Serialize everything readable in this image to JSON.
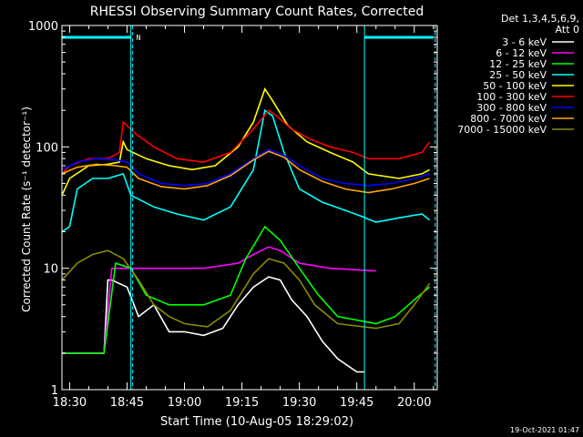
{
  "chart_data": {
    "type": "line",
    "title": "RHESSI Observing Summary Count Rates, Corrected",
    "xlabel": "Start Time (10-Aug-05 18:29:02)",
    "ylabel": "Corrected Count Rate (s⁻¹ detector⁻¹)",
    "xlim": [
      "18:28",
      "20:06"
    ],
    "ylim": [
      1,
      1000
    ],
    "y_scale": "log",
    "x_ticks": [
      "18:30",
      "18:45",
      "19:00",
      "19:15",
      "19:30",
      "19:45",
      "20:00"
    ],
    "y_ticks": [
      "1",
      "10",
      "100",
      "1000"
    ],
    "detectors_label": "Det 1,3,4,5,6,9,",
    "attenuator_label": "Att 0",
    "flag_label": "N",
    "timestamp": "19-Oct-2021 01:47",
    "legend_position": "top-right, outside plot",
    "series": [
      {
        "name": "3 - 6 keV",
        "color": "#ffffff",
        "points": [
          [
            "18:28",
            2
          ],
          [
            "18:39",
            2
          ],
          [
            "18:40",
            8
          ],
          [
            "18:41",
            8
          ],
          [
            "18:45",
            7
          ],
          [
            "18:48",
            4
          ],
          [
            "18:52",
            5
          ],
          [
            "18:56",
            3
          ],
          [
            "19:00",
            3
          ],
          [
            "19:05",
            2.8
          ],
          [
            "19:10",
            3.2
          ],
          [
            "19:14",
            5
          ],
          [
            "19:18",
            7
          ],
          [
            "19:22",
            8.5
          ],
          [
            "19:25",
            8
          ],
          [
            "19:28",
            5.5
          ],
          [
            "19:32",
            4
          ],
          [
            "19:36",
            2.5
          ],
          [
            "19:40",
            1.8
          ],
          [
            "19:45",
            1.4
          ],
          [
            "19:47",
            1.4
          ]
        ]
      },
      {
        "name": "6 - 12 keV",
        "color": "#ff00ff",
        "points": [
          [
            "18:28",
            2
          ],
          [
            "18:39",
            2
          ],
          [
            "18:41",
            10
          ],
          [
            "18:46",
            10
          ],
          [
            "19:05",
            10
          ],
          [
            "19:14",
            11
          ],
          [
            "19:18",
            13
          ],
          [
            "19:22",
            15
          ],
          [
            "19:25",
            14
          ],
          [
            "19:30",
            11
          ],
          [
            "19:38",
            10
          ],
          [
            "19:50",
            9.5
          ]
        ]
      },
      {
        "name": "12 - 25 keV",
        "color": "#00ff00",
        "points": [
          [
            "18:28",
            2
          ],
          [
            "18:39",
            2
          ],
          [
            "18:40",
            3.5
          ],
          [
            "18:42",
            11
          ],
          [
            "18:46",
            10
          ],
          [
            "18:50",
            6
          ],
          [
            "18:56",
            5
          ],
          [
            "19:05",
            5
          ],
          [
            "19:12",
            6
          ],
          [
            "19:16",
            12
          ],
          [
            "19:21",
            22
          ],
          [
            "19:25",
            17
          ],
          [
            "19:30",
            10
          ],
          [
            "19:35",
            6
          ],
          [
            "19:40",
            4
          ],
          [
            "19:50",
            3.5
          ],
          [
            "19:55",
            4
          ],
          [
            "20:00",
            5.5
          ],
          [
            "20:04",
            7
          ]
        ]
      },
      {
        "name": "25 - 50 keV",
        "color": "#00ffff",
        "points": [
          [
            "18:28",
            20
          ],
          [
            "18:30",
            22
          ],
          [
            "18:32",
            45
          ],
          [
            "18:36",
            55
          ],
          [
            "18:40",
            55
          ],
          [
            "18:44",
            60
          ],
          [
            "18:46",
            40
          ],
          [
            "18:52",
            32
          ],
          [
            "18:58",
            28
          ],
          [
            "19:05",
            25
          ],
          [
            "19:12",
            32
          ],
          [
            "19:18",
            65
          ],
          [
            "19:21",
            200
          ],
          [
            "19:23",
            180
          ],
          [
            "19:26",
            90
          ],
          [
            "19:30",
            45
          ],
          [
            "19:36",
            35
          ],
          [
            "19:42",
            30
          ],
          [
            "19:46",
            27
          ],
          [
            "19:50",
            24
          ],
          [
            "19:56",
            26
          ],
          [
            "20:02",
            28
          ],
          [
            "20:04",
            25
          ]
        ]
      },
      {
        "name": "50 - 100 keV",
        "color": "#ffff00",
        "points": [
          [
            "18:28",
            40
          ],
          [
            "18:30",
            55
          ],
          [
            "18:35",
            70
          ],
          [
            "18:40",
            72
          ],
          [
            "18:43",
            75
          ],
          [
            "18:44",
            110
          ],
          [
            "18:45",
            95
          ],
          [
            "18:50",
            80
          ],
          [
            "18:56",
            70
          ],
          [
            "19:02",
            65
          ],
          [
            "19:08",
            70
          ],
          [
            "19:14",
            100
          ],
          [
            "19:18",
            160
          ],
          [
            "19:21",
            300
          ],
          [
            "19:23",
            240
          ],
          [
            "19:27",
            150
          ],
          [
            "19:32",
            110
          ],
          [
            "19:38",
            90
          ],
          [
            "19:44",
            75
          ],
          [
            "19:48",
            60
          ],
          [
            "19:56",
            55
          ],
          [
            "20:02",
            60
          ],
          [
            "20:04",
            65
          ]
        ]
      },
      {
        "name": "100 - 300 keV",
        "color": "#ff0000",
        "points": [
          [
            "18:28",
            60
          ],
          [
            "18:30",
            70
          ],
          [
            "18:35",
            80
          ],
          [
            "18:40",
            80
          ],
          [
            "18:43",
            90
          ],
          [
            "18:44",
            160
          ],
          [
            "18:47",
            130
          ],
          [
            "18:52",
            100
          ],
          [
            "18:58",
            80
          ],
          [
            "19:05",
            75
          ],
          [
            "19:12",
            90
          ],
          [
            "19:18",
            140
          ],
          [
            "19:22",
            200
          ],
          [
            "19:24",
            180
          ],
          [
            "19:28",
            140
          ],
          [
            "19:33",
            115
          ],
          [
            "19:38",
            100
          ],
          [
            "19:44",
            90
          ],
          [
            "19:48",
            80
          ],
          [
            "19:56",
            80
          ],
          [
            "20:02",
            90
          ],
          [
            "20:04",
            110
          ]
        ]
      },
      {
        "name": "300 - 800 keV",
        "color": "#0000ff",
        "points": [
          [
            "18:28",
            65
          ],
          [
            "18:32",
            75
          ],
          [
            "18:37",
            80
          ],
          [
            "18:42",
            78
          ],
          [
            "18:45",
            75
          ],
          [
            "18:48",
            60
          ],
          [
            "18:54",
            50
          ],
          [
            "19:00",
            48
          ],
          [
            "19:06",
            50
          ],
          [
            "19:12",
            60
          ],
          [
            "19:18",
            80
          ],
          [
            "19:22",
            95
          ],
          [
            "19:26",
            85
          ],
          [
            "19:30",
            70
          ],
          [
            "19:36",
            55
          ],
          [
            "19:42",
            50
          ],
          [
            "19:48",
            48
          ],
          [
            "19:54",
            50
          ],
          [
            "20:00",
            55
          ],
          [
            "20:04",
            60
          ]
        ]
      },
      {
        "name": "800 - 7000 keV",
        "color": "#ffa500",
        "points": [
          [
            "18:28",
            60
          ],
          [
            "18:32",
            68
          ],
          [
            "18:37",
            72
          ],
          [
            "18:42",
            70
          ],
          [
            "18:45",
            68
          ],
          [
            "18:48",
            55
          ],
          [
            "18:54",
            47
          ],
          [
            "19:00",
            45
          ],
          [
            "19:06",
            48
          ],
          [
            "19:12",
            58
          ],
          [
            "19:18",
            78
          ],
          [
            "19:22",
            92
          ],
          [
            "19:26",
            82
          ],
          [
            "19:30",
            65
          ],
          [
            "19:36",
            52
          ],
          [
            "19:42",
            45
          ],
          [
            "19:48",
            42
          ],
          [
            "19:54",
            45
          ],
          [
            "20:00",
            50
          ],
          [
            "20:04",
            55
          ]
        ]
      },
      {
        "name": "7000 - 15000 keV",
        "color": "#8b8b00",
        "points": [
          [
            "18:28",
            8
          ],
          [
            "18:32",
            11
          ],
          [
            "18:36",
            13
          ],
          [
            "18:40",
            14
          ],
          [
            "18:44",
            12
          ],
          [
            "18:48",
            8
          ],
          [
            "18:52",
            5
          ],
          [
            "18:56",
            4
          ],
          [
            "19:00",
            3.5
          ],
          [
            "19:06",
            3.3
          ],
          [
            "19:12",
            4.5
          ],
          [
            "19:18",
            9
          ],
          [
            "19:22",
            12
          ],
          [
            "19:26",
            11
          ],
          [
            "19:30",
            8
          ],
          [
            "19:34",
            5
          ],
          [
            "19:40",
            3.5
          ],
          [
            "19:50",
            3.2
          ],
          [
            "19:56",
            3.5
          ],
          [
            "20:00",
            5
          ],
          [
            "20:04",
            7.5
          ]
        ]
      }
    ],
    "annotations": {
      "cyan_bar_segments": [
        [
          "18:28",
          "18:46"
        ],
        [
          "19:47",
          "20:05"
        ]
      ],
      "solid_verticals": [
        "18:46",
        "19:47"
      ],
      "dashed_verticals": [
        "18:46",
        "20:05"
      ]
    }
  }
}
